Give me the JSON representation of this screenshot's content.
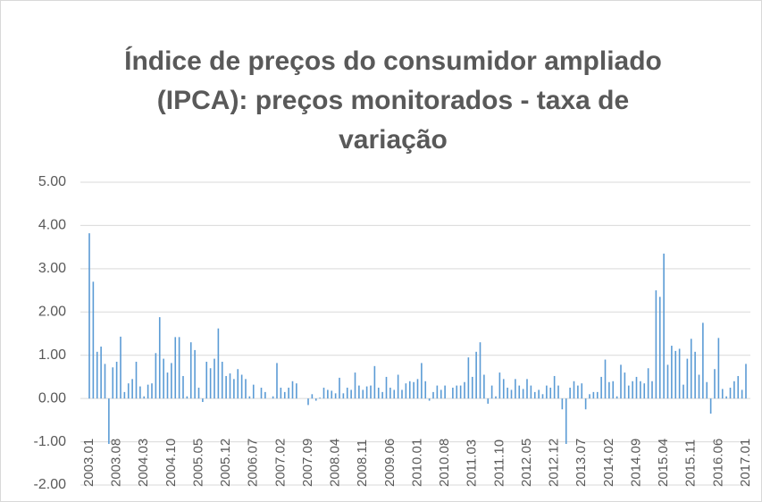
{
  "chart_data": {
    "type": "bar",
    "title": [
      "Índice de preços do consumidor ampliado",
      "(IPCA): preços monitorados - taxa de",
      "variação"
    ],
    "categories": [
      "2003.01",
      null,
      null,
      null,
      null,
      null,
      null,
      "2003.08",
      null,
      null,
      null,
      null,
      null,
      null,
      "2004.03",
      null,
      null,
      null,
      null,
      null,
      null,
      "2004.10",
      null,
      null,
      null,
      null,
      null,
      null,
      "2005.05",
      null,
      null,
      null,
      null,
      null,
      null,
      "2005.12",
      null,
      null,
      null,
      null,
      null,
      null,
      "2006.07",
      null,
      null,
      null,
      null,
      null,
      null,
      "2007.02",
      null,
      null,
      null,
      null,
      null,
      null,
      "2007.09",
      null,
      null,
      null,
      null,
      null,
      null,
      "2008.04",
      null,
      null,
      null,
      null,
      null,
      null,
      "2008.11",
      null,
      null,
      null,
      null,
      null,
      null,
      "2009.06",
      null,
      null,
      null,
      null,
      null,
      null,
      "2010.01",
      null,
      null,
      null,
      null,
      null,
      null,
      "2010.08",
      null,
      null,
      null,
      null,
      null,
      null,
      "2011.03",
      null,
      null,
      null,
      null,
      null,
      null,
      "2011.10",
      null,
      null,
      null,
      null,
      null,
      null,
      "2012.05",
      null,
      null,
      null,
      null,
      null,
      null,
      "2012.12",
      null,
      null,
      null,
      null,
      null,
      null,
      "2013.07",
      null,
      null,
      null,
      null,
      null,
      null,
      "2014.02",
      null,
      null,
      null,
      null,
      null,
      null,
      "2014.09",
      null,
      null,
      null,
      null,
      null,
      null,
      "2015.04",
      null,
      null,
      null,
      null,
      null,
      null,
      "2015.11",
      null,
      null,
      null,
      null,
      null,
      null,
      "2016.06",
      null,
      null,
      null,
      null,
      null,
      null,
      "2017.01"
    ],
    "values": [
      3.82,
      2.7,
      1.08,
      1.2,
      0.8,
      -1.05,
      0.72,
      0.85,
      1.43,
      0.15,
      0.35,
      0.45,
      0.85,
      0.28,
      0.05,
      0.32,
      0.35,
      1.05,
      1.88,
      0.92,
      0.6,
      0.82,
      1.42,
      1.42,
      0.52,
      0.05,
      1.3,
      1.12,
      0.25,
      -0.08,
      0.85,
      0.7,
      0.92,
      1.62,
      0.85,
      0.52,
      0.58,
      0.45,
      0.68,
      0.55,
      0.45,
      0.05,
      0.32,
      0.0,
      0.25,
      0.15,
      0.0,
      0.05,
      0.82,
      0.25,
      0.15,
      0.25,
      0.4,
      0.35,
      0.0,
      0.0,
      -0.15,
      0.1,
      -0.05,
      0.02,
      0.25,
      0.2,
      0.18,
      0.12,
      0.48,
      0.12,
      0.25,
      0.2,
      0.6,
      0.3,
      0.2,
      0.28,
      0.3,
      0.75,
      0.25,
      0.15,
      0.5,
      0.25,
      0.2,
      0.55,
      0.2,
      0.35,
      0.4,
      0.38,
      0.45,
      0.82,
      0.4,
      -0.05,
      0.15,
      0.3,
      0.2,
      0.3,
      0.0,
      0.25,
      0.3,
      0.3,
      0.38,
      0.95,
      0.5,
      1.08,
      1.3,
      0.55,
      -0.12,
      0.3,
      0.05,
      0.6,
      0.45,
      0.25,
      0.2,
      0.45,
      0.3,
      0.22,
      0.45,
      0.3,
      0.15,
      0.2,
      0.1,
      0.3,
      0.25,
      0.52,
      0.3,
      -0.25,
      -1.05,
      0.25,
      0.4,
      0.3,
      0.35,
      -0.25,
      0.1,
      0.15,
      0.15,
      0.5,
      0.9,
      0.38,
      0.4,
      0.05,
      0.78,
      0.6,
      0.3,
      0.4,
      0.5,
      0.4,
      0.35,
      0.7,
      0.4,
      2.5,
      2.35,
      3.35,
      0.78,
      1.22,
      1.1,
      1.15,
      0.32,
      0.92,
      1.38,
      1.08,
      0.55,
      1.75,
      0.38,
      -0.35,
      0.68,
      1.4,
      0.22,
      0.05,
      0.25,
      0.4,
      0.52,
      0.2,
      0.8
    ],
    "color": "#5b9bd5",
    "ylim": [
      -2,
      5
    ],
    "yticks": [
      {
        "value": -2,
        "label": "-2.00"
      },
      {
        "value": -1,
        "label": "-1.00"
      },
      {
        "value": 0,
        "label": "0.00"
      },
      {
        "value": 1,
        "label": "1.00"
      },
      {
        "value": 2,
        "label": "2.00"
      },
      {
        "value": 3,
        "label": "3.00"
      },
      {
        "value": 4,
        "label": "4.00"
      },
      {
        "value": 5,
        "label": "5.00"
      }
    ],
    "grid": true
  }
}
